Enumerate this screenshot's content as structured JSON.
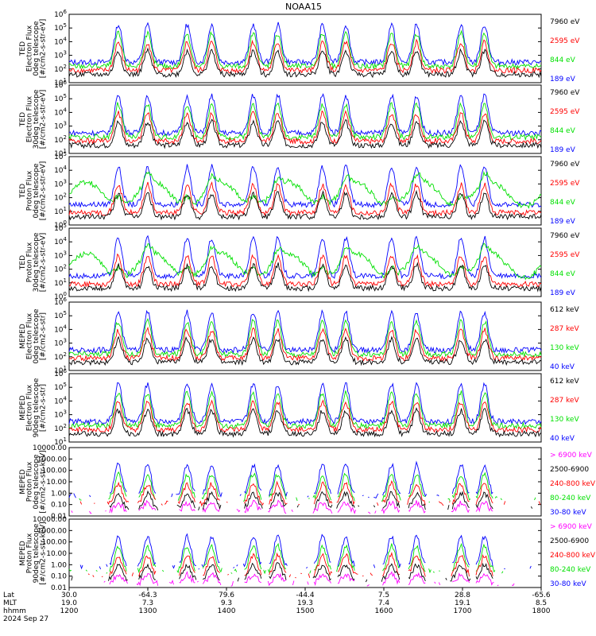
{
  "title": "NOAA15",
  "colors": {
    "blue": "#0000ff",
    "red": "#ff0000",
    "green": "#00e000",
    "black": "#000000",
    "magenta": "#ff00ff"
  },
  "x_axis": {
    "row_labels": [
      "Lat",
      "MLT",
      "hhmm",
      "2024 Sep 27"
    ],
    "ticks": [
      {
        "lat": "30.0",
        "mlt": "19.0",
        "hhmm": "1200"
      },
      {
        "lat": "-64.3",
        "mlt": "7.3",
        "hhmm": "1300"
      },
      {
        "lat": "79.6",
        "mlt": "9.3",
        "hhmm": "1400"
      },
      {
        "lat": "-44.4",
        "mlt": "19.3",
        "hhmm": "1500"
      },
      {
        "lat": "7.5",
        "mlt": "7.4",
        "hhmm": "1600"
      },
      {
        "lat": "28.8",
        "mlt": "19.1",
        "hhmm": "1700"
      },
      {
        "lat": "-65.6",
        "mlt": "8.5",
        "hhmm": "1800"
      }
    ]
  },
  "chart_data": [
    {
      "type": "line",
      "ylabel": [
        "TED",
        "Electron Flux",
        "0deg telescope",
        "[#/cm2-s-str-eV]"
      ],
      "yscale": "log",
      "ylim": [
        10,
        1000000
      ],
      "tick_labels": [
        "10^1",
        "10^2",
        "10^3",
        "10^4",
        "10^5",
        "10^6"
      ],
      "series": [
        {
          "name": "7960 eV",
          "color": "#000000"
        },
        {
          "name": "2595 eV",
          "color": "#ff0000"
        },
        {
          "name": "844 eV",
          "color": "#00e000"
        },
        {
          "name": "189 eV",
          "color": "#0000ff"
        }
      ]
    },
    {
      "type": "line",
      "ylabel": [
        "TED",
        "Electron Flux",
        "30deg telescope",
        "[#/cm2-s-str-eV]"
      ],
      "yscale": "log",
      "ylim": [
        10,
        1000000
      ],
      "tick_labels": [
        "10^1",
        "10^2",
        "10^3",
        "10^4",
        "10^5",
        "10^6"
      ],
      "series": [
        {
          "name": "7960 eV",
          "color": "#000000"
        },
        {
          "name": "2595 eV",
          "color": "#ff0000"
        },
        {
          "name": "844 eV",
          "color": "#00e000"
        },
        {
          "name": "189 eV",
          "color": "#0000ff"
        }
      ]
    },
    {
      "type": "line",
      "ylabel": [
        "TED",
        "Proton Flux",
        "0deg telescope",
        "[#/cm2-s-str-eV]"
      ],
      "yscale": "log",
      "ylim": [
        1,
        100000
      ],
      "tick_labels": [
        "10^0",
        "10^1",
        "10^2",
        "10^3",
        "10^4",
        "10^5"
      ],
      "series": [
        {
          "name": "7960 eV",
          "color": "#000000"
        },
        {
          "name": "2595 eV",
          "color": "#ff0000"
        },
        {
          "name": "844 eV",
          "color": "#00e000"
        },
        {
          "name": "189 eV",
          "color": "#0000ff"
        }
      ]
    },
    {
      "type": "line",
      "ylabel": [
        "TED",
        "Proton Flux",
        "30deg telescope",
        "[#/cm2-s-str-eV]"
      ],
      "yscale": "log",
      "ylim": [
        1,
        100000
      ],
      "tick_labels": [
        "10^0",
        "10^1",
        "10^2",
        "10^3",
        "10^4",
        "10^5"
      ],
      "series": [
        {
          "name": "7960 eV",
          "color": "#000000"
        },
        {
          "name": "2595 eV",
          "color": "#ff0000"
        },
        {
          "name": "844 eV",
          "color": "#00e000"
        },
        {
          "name": "189 eV",
          "color": "#0000ff"
        }
      ]
    },
    {
      "type": "line",
      "ylabel": [
        "MEPED",
        "Electron Flux",
        "0deg telescope",
        "[#/cm2-s-str]"
      ],
      "yscale": "log",
      "ylim": [
        10,
        1000000
      ],
      "tick_labels": [
        "10^1",
        "10^2",
        "10^3",
        "10^4",
        "10^5",
        "10^6"
      ],
      "series": [
        {
          "name": "612 keV",
          "color": "#000000"
        },
        {
          "name": "287 keV",
          "color": "#ff0000"
        },
        {
          "name": "130 keV",
          "color": "#00e000"
        },
        {
          "name": "40 keV",
          "color": "#0000ff"
        }
      ]
    },
    {
      "type": "line",
      "ylabel": [
        "MEPED",
        "Electron Flux",
        "90deg telescope",
        "[#/cm2-s-str]"
      ],
      "yscale": "log",
      "ylim": [
        10,
        1000000
      ],
      "tick_labels": [
        "10^1",
        "10^2",
        "10^3",
        "10^4",
        "10^5",
        "10^6"
      ],
      "series": [
        {
          "name": "612 keV",
          "color": "#000000"
        },
        {
          "name": "287 keV",
          "color": "#ff0000"
        },
        {
          "name": "130 keV",
          "color": "#00e000"
        },
        {
          "name": "40 keV",
          "color": "#0000ff"
        }
      ]
    },
    {
      "type": "line",
      "ylabel": [
        "MEPED",
        "Proton Flux",
        "0deg telescope",
        "[#/cm2-s-str-keV]"
      ],
      "yscale": "log",
      "ylim": [
        0.01,
        10000
      ],
      "tick_labels": [
        "0.01",
        "0.10",
        "1.00",
        "10.00",
        "100.00",
        "1000.00",
        "10000.00"
      ],
      "series": [
        {
          "name": "> 6900 keV",
          "color": "#ff00ff"
        },
        {
          "name": "2500-6900",
          "color": "#000000"
        },
        {
          "name": "240-800 keV",
          "color": "#ff0000"
        },
        {
          "name": "80-240 keV",
          "color": "#00e000"
        },
        {
          "name": "30-80 keV",
          "color": "#0000ff"
        }
      ]
    },
    {
      "type": "line",
      "ylabel": [
        "MEPED",
        "Proton Flux",
        "90deg telescope",
        "[#/cm2-s-str-keV]"
      ],
      "yscale": "log",
      "ylim": [
        0.01,
        10000
      ],
      "tick_labels": [
        "0.01",
        "0.10",
        "1.00",
        "10.00",
        "100.00",
        "1000.00",
        "10000.00"
      ],
      "series": [
        {
          "name": "> 6900 keV",
          "color": "#ff00ff"
        },
        {
          "name": "2500-6900",
          "color": "#000000"
        },
        {
          "name": "240-800 keV",
          "color": "#ff0000"
        },
        {
          "name": "80-240 keV",
          "color": "#00e000"
        },
        {
          "name": "30-80 keV",
          "color": "#0000ff"
        }
      ]
    }
  ]
}
